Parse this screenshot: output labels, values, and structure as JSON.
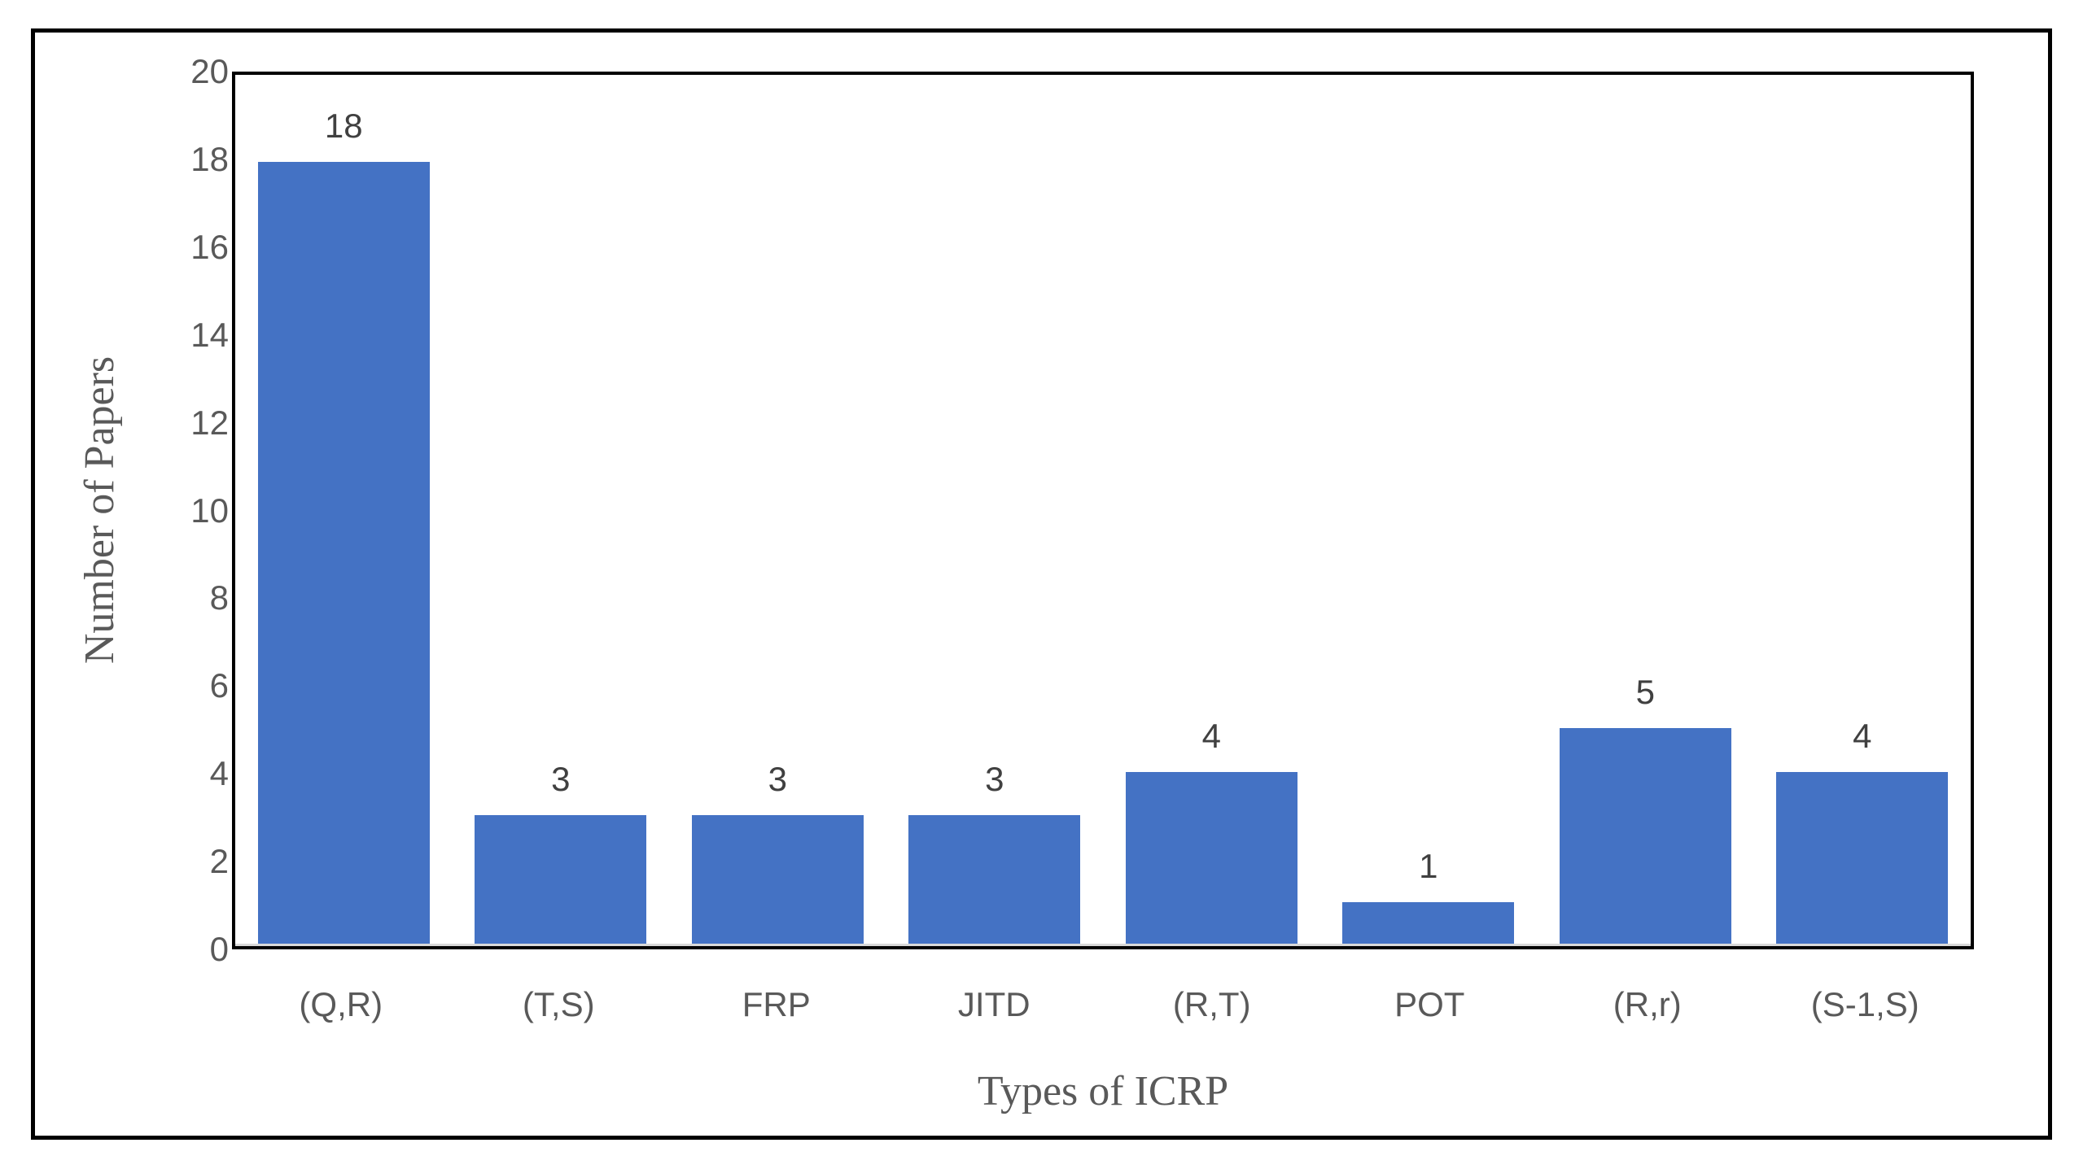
{
  "chart_data": {
    "type": "bar",
    "categories": [
      "(Q,R)",
      "(T,S)",
      "FRP",
      "JITD",
      "(R,T)",
      "POT",
      "(R,r)",
      "(S-1,S)"
    ],
    "values": [
      18,
      3,
      3,
      3,
      4,
      1,
      5,
      4
    ],
    "title": "",
    "xlabel": "Types of ICRP",
    "ylabel": "Number of Papers",
    "ylim": [
      0,
      20
    ],
    "ytick_step": 2,
    "ytick_labels": [
      "0",
      "2",
      "4",
      "6",
      "8",
      "10",
      "12",
      "14",
      "16",
      "18",
      "20"
    ],
    "data_labels": [
      "18",
      "3",
      "3",
      "3",
      "4",
      "1",
      "5",
      "4"
    ],
    "grid": "off",
    "legend": "none",
    "colors": {
      "bar_fill": "#4472C4",
      "axis_text": "#595959",
      "data_label_text": "#404040",
      "frame_border": "#000000",
      "category_axis_line": "#d9d9d9"
    }
  }
}
